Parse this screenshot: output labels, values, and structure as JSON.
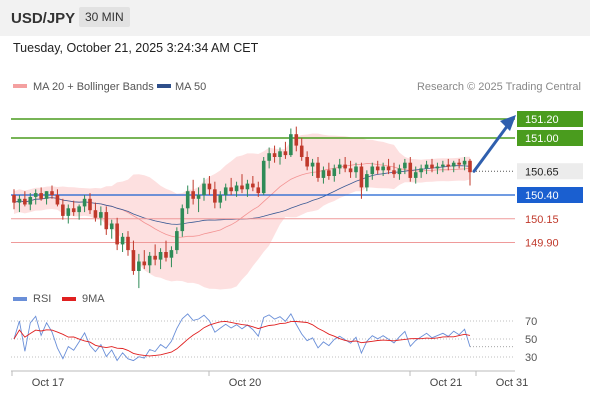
{
  "header": {
    "pair": "USD/JPY",
    "timeframe": "30 MIN"
  },
  "datetime": "Tuesday, October 21, 2025 3:24:34 AM CET",
  "credit": "Research © 2025 Trading Central",
  "colors": {
    "up": "#2e8b57",
    "down": "#c0392b",
    "green_line": "#4a9c1e",
    "blue_line": "#1a5fd0",
    "red_line": "#ef9a9a",
    "bollinger": "#fde0e0",
    "ma20": "#f08080",
    "ma50": "#3a5a95",
    "rsi": "#6a8fd8",
    "rsi_ma": "#e02020",
    "arrow": "#2f5fae"
  },
  "chart_data": {
    "type": "candlestick",
    "legend": [
      {
        "label": "MA 20 + Bollinger Bands",
        "color": "#f4a0a0"
      },
      {
        "label": "MA 50",
        "color": "#2e4f8a"
      }
    ],
    "x_labels": [
      "Oct 17",
      "Oct 20",
      "Oct 21",
      "Oct 31"
    ],
    "levels": [
      {
        "value": 151.2,
        "label": "151.20",
        "style": "green"
      },
      {
        "value": 151.0,
        "label": "151.00",
        "style": "green"
      },
      {
        "value": 150.65,
        "label": "150.65",
        "style": "current"
      },
      {
        "value": 150.4,
        "label": "150.40",
        "style": "blue"
      },
      {
        "value": 150.15,
        "label": "150.15",
        "style": "red"
      },
      {
        "value": 149.9,
        "label": "149.90",
        "style": "red"
      }
    ],
    "price_range": [
      149.4,
      151.4
    ],
    "candles": [
      [
        150.4,
        150.46,
        150.25,
        150.32
      ],
      [
        150.32,
        150.4,
        150.22,
        150.36
      ],
      [
        150.36,
        150.44,
        150.28,
        150.3
      ],
      [
        150.3,
        150.42,
        150.24,
        150.38
      ],
      [
        150.38,
        150.46,
        150.3,
        150.42
      ],
      [
        150.42,
        150.48,
        150.34,
        150.36
      ],
      [
        150.36,
        150.44,
        150.3,
        150.44
      ],
      [
        150.44,
        150.5,
        150.36,
        150.4
      ],
      [
        150.4,
        150.46,
        150.28,
        150.3
      ],
      [
        150.3,
        150.36,
        150.14,
        150.18
      ],
      [
        150.18,
        150.3,
        150.1,
        150.26
      ],
      [
        150.26,
        150.34,
        150.18,
        150.22
      ],
      [
        150.22,
        150.3,
        150.14,
        150.28
      ],
      [
        150.28,
        150.4,
        150.22,
        150.36
      ],
      [
        150.36,
        150.42,
        150.2,
        150.24
      ],
      [
        150.24,
        150.32,
        150.12,
        150.16
      ],
      [
        150.16,
        150.28,
        150.08,
        150.22
      ],
      [
        150.22,
        150.28,
        149.98,
        150.04
      ],
      [
        150.04,
        150.14,
        149.94,
        150.1
      ],
      [
        150.1,
        150.16,
        149.82,
        149.88
      ],
      [
        149.88,
        150.0,
        149.8,
        149.96
      ],
      [
        149.96,
        150.02,
        149.76,
        149.82
      ],
      [
        149.82,
        149.92,
        149.56,
        149.6
      ],
      [
        149.6,
        149.78,
        149.42,
        149.7
      ],
      [
        149.7,
        149.82,
        149.62,
        149.66
      ],
      [
        149.66,
        149.8,
        149.58,
        149.76
      ],
      [
        149.76,
        149.88,
        149.66,
        149.72
      ],
      [
        149.72,
        149.84,
        149.62,
        149.8
      ],
      [
        149.8,
        149.92,
        149.7,
        149.74
      ],
      [
        149.74,
        149.86,
        149.64,
        149.82
      ],
      [
        149.82,
        150.06,
        149.78,
        150.02
      ],
      [
        150.02,
        150.3,
        149.96,
        150.26
      ],
      [
        150.26,
        150.5,
        150.2,
        150.44
      ],
      [
        150.44,
        150.56,
        150.3,
        150.36
      ],
      [
        150.36,
        150.48,
        150.22,
        150.4
      ],
      [
        150.4,
        150.58,
        150.34,
        150.52
      ],
      [
        150.52,
        150.6,
        150.4,
        150.46
      ],
      [
        150.46,
        150.54,
        150.26,
        150.32
      ],
      [
        150.32,
        150.44,
        150.26,
        150.4
      ],
      [
        150.4,
        150.52,
        150.34,
        150.48
      ],
      [
        150.48,
        150.58,
        150.4,
        150.44
      ],
      [
        150.44,
        150.54,
        150.38,
        150.5
      ],
      [
        150.5,
        150.62,
        150.42,
        150.46
      ],
      [
        150.46,
        150.56,
        150.38,
        150.52
      ],
      [
        150.52,
        150.6,
        150.44,
        150.48
      ],
      [
        150.48,
        150.54,
        150.38,
        150.42
      ],
      [
        150.42,
        150.8,
        150.4,
        150.76
      ],
      [
        150.76,
        150.9,
        150.68,
        150.84
      ],
      [
        150.84,
        150.92,
        150.74,
        150.8
      ],
      [
        150.8,
        150.9,
        150.72,
        150.86
      ],
      [
        150.86,
        150.96,
        150.78,
        150.82
      ],
      [
        150.82,
        151.1,
        150.8,
        151.04
      ],
      [
        151.04,
        151.12,
        150.86,
        150.92
      ],
      [
        150.92,
        151.0,
        150.76,
        150.8
      ],
      [
        150.8,
        150.86,
        150.66,
        150.7
      ],
      [
        150.7,
        150.78,
        150.6,
        150.74
      ],
      [
        150.74,
        150.8,
        150.54,
        150.58
      ],
      [
        150.58,
        150.7,
        150.52,
        150.66
      ],
      [
        150.66,
        150.74,
        150.56,
        150.6
      ],
      [
        150.6,
        150.72,
        150.54,
        150.68
      ],
      [
        150.68,
        150.78,
        150.62,
        150.72
      ],
      [
        150.72,
        150.8,
        150.64,
        150.68
      ],
      [
        150.68,
        150.76,
        150.58,
        150.64
      ],
      [
        150.64,
        150.74,
        150.58,
        150.7
      ],
      [
        150.7,
        150.74,
        150.36,
        150.48
      ],
      [
        150.48,
        150.66,
        150.44,
        150.62
      ],
      [
        150.62,
        150.74,
        150.56,
        150.7
      ],
      [
        150.7,
        150.76,
        150.62,
        150.66
      ],
      [
        150.66,
        150.74,
        150.6,
        150.7
      ],
      [
        150.7,
        150.78,
        150.62,
        150.66
      ],
      [
        150.66,
        150.74,
        150.58,
        150.62
      ],
      [
        150.62,
        150.72,
        150.56,
        150.68
      ],
      [
        150.68,
        150.78,
        150.62,
        150.74
      ],
      [
        150.74,
        150.8,
        150.54,
        150.58
      ],
      [
        150.58,
        150.7,
        150.52,
        150.64
      ],
      [
        150.64,
        150.72,
        150.58,
        150.68
      ],
      [
        150.68,
        150.76,
        150.62,
        150.72
      ],
      [
        150.72,
        150.78,
        150.64,
        150.68
      ],
      [
        150.68,
        150.74,
        150.62,
        150.7
      ],
      [
        150.7,
        150.76,
        150.64,
        150.72
      ],
      [
        150.72,
        150.78,
        150.66,
        150.7
      ],
      [
        150.7,
        150.76,
        150.64,
        150.74
      ],
      [
        150.74,
        150.78,
        150.68,
        150.72
      ],
      [
        150.72,
        150.8,
        150.66,
        150.76
      ],
      [
        150.76,
        150.78,
        150.5,
        150.64
      ]
    ],
    "indicator": {
      "name": "RSI",
      "ma_name": "9MA",
      "y_ticks": [
        70,
        50,
        30
      ],
      "y_range": [
        20,
        80
      ]
    }
  }
}
